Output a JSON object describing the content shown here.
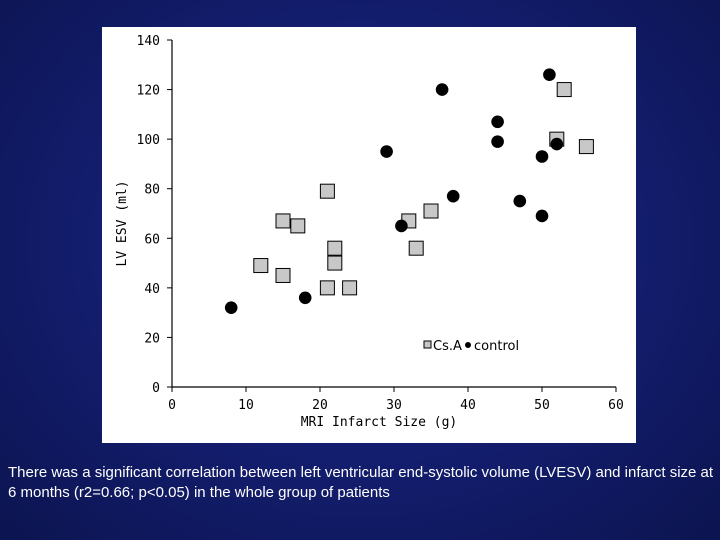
{
  "caption": "There was a significant correlation between left ventricular end-systolic volume (LVESV) and infarct size at 6 months (r2=0.66; p<0.05) in the whole group of patients",
  "chart_data": {
    "type": "scatter",
    "title": "",
    "xlabel": "MRI Infarct Size (g)",
    "ylabel": "LV ESV (ml)",
    "xlim": [
      0,
      60
    ],
    "ylim": [
      0,
      140
    ],
    "x_ticks": [
      "0",
      "10",
      "20",
      "30",
      "40",
      "50",
      "60"
    ],
    "y_ticks": [
      "0",
      "20",
      "40",
      "60",
      "80",
      "100",
      "120",
      "140"
    ],
    "grid": false,
    "legend_position": "bottom-right",
    "series": [
      {
        "name": "Cs.A",
        "marker": "square",
        "color": "#c8c8c8",
        "points": [
          {
            "x": 12,
            "y": 49
          },
          {
            "x": 15,
            "y": 67
          },
          {
            "x": 15,
            "y": 45
          },
          {
            "x": 17,
            "y": 65
          },
          {
            "x": 21,
            "y": 79
          },
          {
            "x": 21,
            "y": 40
          },
          {
            "x": 22,
            "y": 56
          },
          {
            "x": 22,
            "y": 50
          },
          {
            "x": 24,
            "y": 40
          },
          {
            "x": 32,
            "y": 67
          },
          {
            "x": 33,
            "y": 56
          },
          {
            "x": 35,
            "y": 71
          },
          {
            "x": 52,
            "y": 100
          },
          {
            "x": 53,
            "y": 120
          },
          {
            "x": 56,
            "y": 97
          }
        ]
      },
      {
        "name": "control",
        "marker": "circle",
        "color": "#000000",
        "points": [
          {
            "x": 8,
            "y": 32
          },
          {
            "x": 18,
            "y": 36
          },
          {
            "x": 29,
            "y": 95
          },
          {
            "x": 31,
            "y": 65
          },
          {
            "x": 36.5,
            "y": 120
          },
          {
            "x": 38,
            "y": 77
          },
          {
            "x": 44,
            "y": 107
          },
          {
            "x": 44,
            "y": 99
          },
          {
            "x": 47,
            "y": 75
          },
          {
            "x": 50,
            "y": 93
          },
          {
            "x": 50,
            "y": 69
          },
          {
            "x": 51,
            "y": 126
          },
          {
            "x": 52,
            "y": 98
          }
        ]
      }
    ]
  }
}
